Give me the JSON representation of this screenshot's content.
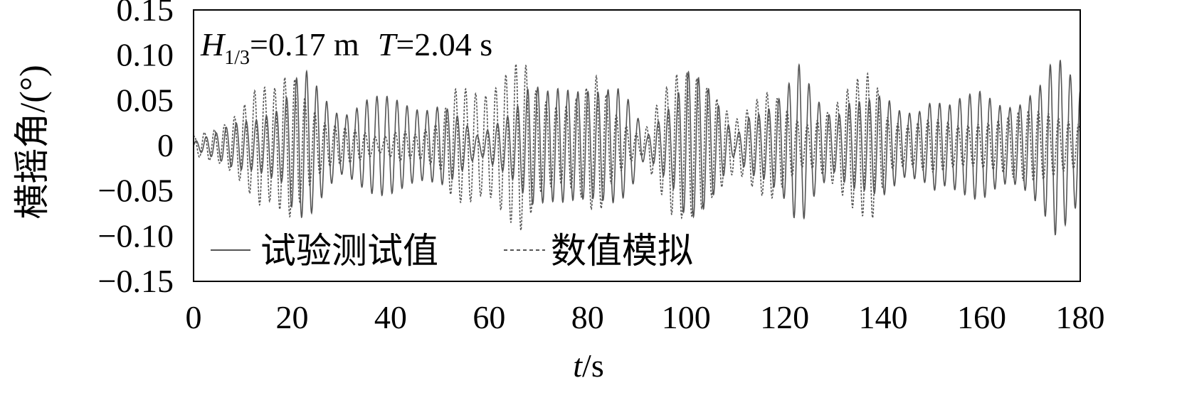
{
  "chart_data": {
    "type": "line",
    "annotation": {
      "H_symbol": "H",
      "H_sub": "1/3",
      "H_value": "=0.17 m",
      "T_symbol": "T",
      "T_value": "=2.04 s"
    },
    "xlabel_italic": "t",
    "xlabel_rest": "/s",
    "ylabel": "横摇角/(°)",
    "xlim": [
      0,
      180
    ],
    "ylim": [
      -0.15,
      0.15
    ],
    "x_ticks": [
      0,
      20,
      40,
      60,
      80,
      100,
      120,
      140,
      160,
      180
    ],
    "y_ticks": [
      0.15,
      0.1,
      0.05,
      0,
      -0.05,
      -0.1,
      -0.15
    ],
    "y_tick_labels": [
      "0.15",
      "0.10",
      "0.05",
      "0",
      "−0.05",
      "−0.10",
      "−0.15"
    ],
    "x_tick_labels": [
      "0",
      "20",
      "40",
      "60",
      "80",
      "100",
      "120",
      "140",
      "160",
      "180"
    ],
    "legend_position": "bottom-left",
    "grid": false,
    "series": [
      {
        "name": "试验测试值",
        "style": "solid",
        "color": "#555555",
        "envelope": [
          [
            0,
            0.005
          ],
          [
            5,
            0.015
          ],
          [
            10,
            0.035
          ],
          [
            15,
            0.045
          ],
          [
            18,
            0.045
          ],
          [
            20,
            0.07
          ],
          [
            23,
            0.085
          ],
          [
            26,
            0.07
          ],
          [
            30,
            0.045
          ],
          [
            35,
            0.055
          ],
          [
            40,
            0.055
          ],
          [
            45,
            0.055
          ],
          [
            50,
            0.055
          ],
          [
            55,
            0.025
          ],
          [
            58,
            0.01
          ],
          [
            62,
            0.035
          ],
          [
            66,
            0.06
          ],
          [
            68,
            0.075
          ],
          [
            72,
            0.06
          ],
          [
            76,
            0.07
          ],
          [
            80,
            0.085
          ],
          [
            83,
            0.08
          ],
          [
            86,
            0.07
          ],
          [
            89,
            0.045
          ],
          [
            92,
            0.01
          ],
          [
            95,
            0.04
          ],
          [
            98,
            0.075
          ],
          [
            100,
            0.11
          ],
          [
            103,
            0.08
          ],
          [
            106,
            0.05
          ],
          [
            110,
            0.01
          ],
          [
            113,
            0.045
          ],
          [
            117,
            0.055
          ],
          [
            120,
            0.065
          ],
          [
            123,
            0.09
          ],
          [
            126,
            0.06
          ],
          [
            130,
            0.04
          ],
          [
            133,
            0.065
          ],
          [
            137,
            0.055
          ],
          [
            140,
            0.055
          ],
          [
            144,
            0.04
          ],
          [
            148,
            0.055
          ],
          [
            150,
            0.07
          ],
          [
            153,
            0.05
          ],
          [
            157,
            0.055
          ],
          [
            160,
            0.065
          ],
          [
            164,
            0.06
          ],
          [
            168,
            0.06
          ],
          [
            172,
            0.07
          ],
          [
            175,
            0.1
          ],
          [
            177,
            0.095
          ],
          [
            180,
            0.08
          ]
        ],
        "period": 2.04,
        "phase": 0.0
      },
      {
        "name": "数值模拟",
        "style": "dashed",
        "color": "#555555",
        "envelope": [
          [
            0,
            0.01
          ],
          [
            5,
            0.025
          ],
          [
            10,
            0.055
          ],
          [
            13,
            0.07
          ],
          [
            16,
            0.06
          ],
          [
            20,
            0.095
          ],
          [
            23,
            0.07
          ],
          [
            27,
            0.03
          ],
          [
            31,
            0.02
          ],
          [
            35,
            0.015
          ],
          [
            38,
            0.01
          ],
          [
            42,
            0.025
          ],
          [
            45,
            0.015
          ],
          [
            50,
            0.025
          ],
          [
            53,
            0.07
          ],
          [
            56,
            0.085
          ],
          [
            60,
            0.075
          ],
          [
            63,
            0.085
          ],
          [
            67,
            0.095
          ],
          [
            70,
            0.06
          ],
          [
            75,
            0.06
          ],
          [
            79,
            0.07
          ],
          [
            82,
            0.08
          ],
          [
            85,
            0.04
          ],
          [
            88,
            0.025
          ],
          [
            91,
            0.015
          ],
          [
            94,
            0.06
          ],
          [
            97,
            0.085
          ],
          [
            100,
            0.08
          ],
          [
            103,
            0.075
          ],
          [
            107,
            0.065
          ],
          [
            110,
            0.04
          ],
          [
            114,
            0.055
          ],
          [
            117,
            0.06
          ],
          [
            120,
            0.045
          ],
          [
            124,
            0.03
          ],
          [
            128,
            0.045
          ],
          [
            131,
            0.055
          ],
          [
            134,
            0.07
          ],
          [
            138,
            0.09
          ],
          [
            141,
            0.04
          ],
          [
            145,
            0.03
          ],
          [
            150,
            0.03
          ],
          [
            155,
            0.025
          ],
          [
            160,
            0.035
          ],
          [
            165,
            0.035
          ],
          [
            170,
            0.04
          ],
          [
            174,
            0.045
          ],
          [
            177,
            0.04
          ],
          [
            180,
            0.03
          ]
        ],
        "period": 2.04,
        "phase": 1.1
      }
    ]
  }
}
